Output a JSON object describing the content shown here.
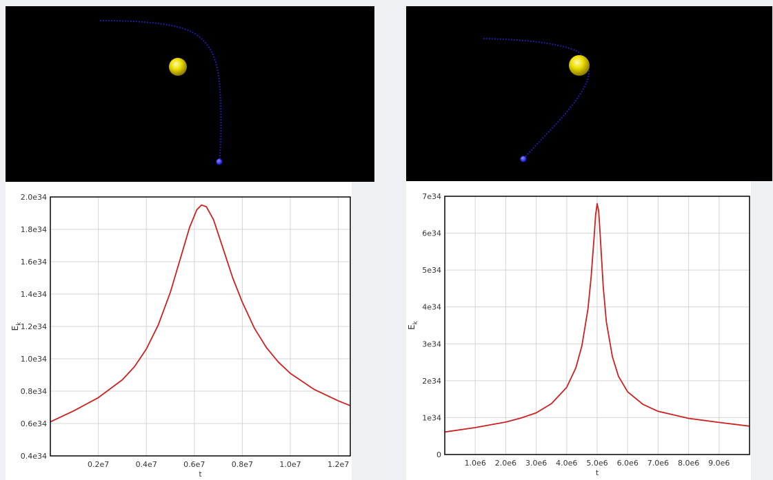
{
  "left": {
    "scene": {
      "sun": "sun-sphere",
      "probe": "probe-sphere",
      "colors": {
        "sun": "#e8d800",
        "trail": "#2a2aff",
        "probe": "#1515ff",
        "background": "#000000"
      }
    },
    "chart_data": {
      "type": "line",
      "title": "",
      "xlabel": "t",
      "ylabel": "E_k",
      "xlim": [
        0,
        12500000
      ],
      "ylim": [
        4e+33,
        2e+34
      ],
      "x_ticks": [
        2000000,
        4000000,
        6000000,
        8000000,
        10000000,
        12000000
      ],
      "x_tick_labels": [
        "0.2e7",
        "0.4e7",
        "0.6e7",
        "0.8e7",
        "1.0e7",
        "1.2e7"
      ],
      "y_ticks": [
        4e+33,
        6e+33,
        8e+33,
        1e+34,
        1.2e+34,
        1.4e+34,
        1.6e+34,
        1.8e+34,
        2e+34
      ],
      "y_tick_labels": [
        "0.4e34",
        "0.6e34",
        "0.8e34",
        "1.0e34",
        "1.2e34",
        "1.4e34",
        "1.6e34",
        "1.8e34",
        "2.0e34"
      ],
      "color": "#cc1f1f",
      "series": [
        {
          "x": [
            0,
            1000000,
            2000000,
            3000000,
            3500000,
            4000000,
            4500000,
            5000000,
            5500000,
            5800000,
            6100000,
            6300000,
            6500000,
            6800000,
            7200000,
            7600000,
            8000000,
            8500000,
            9000000,
            9500000,
            10000000,
            11000000,
            12000000,
            12500000
          ],
          "y": [
            6.1e+33,
            6.8e+33,
            7.6e+33,
            8.7e+33,
            9.5e+33,
            1.06e+34,
            1.21e+34,
            1.41e+34,
            1.66e+34,
            1.81e+34,
            1.92e+34,
            1.95e+34,
            1.94e+34,
            1.86e+34,
            1.68e+34,
            1.5e+34,
            1.35e+34,
            1.19e+34,
            1.07e+34,
            9.8e+33,
            9.1e+33,
            8.1e+33,
            7.4e+33,
            7.1e+33
          ]
        }
      ]
    }
  },
  "right": {
    "scene": {
      "sun": "sun-sphere",
      "probe": "probe-sphere",
      "colors": {
        "sun": "#e8d800",
        "trail": "#2a2aff",
        "probe": "#1515ff",
        "background": "#000000"
      }
    },
    "chart_data": {
      "type": "line",
      "title": "",
      "xlabel": "t",
      "ylabel": "E_k",
      "xlim": [
        0,
        10000000
      ],
      "ylim": [
        0,
        7e+34
      ],
      "x_ticks": [
        1000000,
        2000000,
        3000000,
        4000000,
        5000000,
        6000000,
        7000000,
        8000000,
        9000000
      ],
      "x_tick_labels": [
        "1.0e6",
        "2.0e6",
        "3.0e6",
        "4.0e6",
        "5.0e6",
        "6.0e6",
        "7.0e6",
        "8.0e6",
        "9.0e6"
      ],
      "y_ticks": [
        0,
        1e+34,
        2e+34,
        3e+34,
        4e+34,
        5e+34,
        6e+34,
        7e+34
      ],
      "y_tick_labels": [
        "0",
        "1e34",
        "2e34",
        "3e34",
        "4e34",
        "5e34",
        "6e34",
        "7e34"
      ],
      "color": "#cc1f1f",
      "series": [
        {
          "x": [
            0,
            1000000,
            2000000,
            2500000,
            3000000,
            3500000,
            4000000,
            4300000,
            4500000,
            4700000,
            4800000,
            4900000,
            4950000,
            5000000,
            5050000,
            5100000,
            5200000,
            5300000,
            5500000,
            5700000,
            6000000,
            6500000,
            7000000,
            8000000,
            9000000,
            10000000
          ],
          "y": [
            6.1e+33,
            7.3e+33,
            8.8e+33,
            9.9e+33,
            1.13e+34,
            1.38e+34,
            1.82e+34,
            2.35e+34,
            2.95e+34,
            3.95e+34,
            4.8e+34,
            5.9e+34,
            6.5e+34,
            6.8e+34,
            6.6e+34,
            5.95e+34,
            4.55e+34,
            3.6e+34,
            2.65e+34,
            2.12e+34,
            1.7e+34,
            1.36e+34,
            1.17e+34,
            9.8e+33,
            8.7e+33,
            7.7e+33
          ]
        }
      ]
    }
  }
}
